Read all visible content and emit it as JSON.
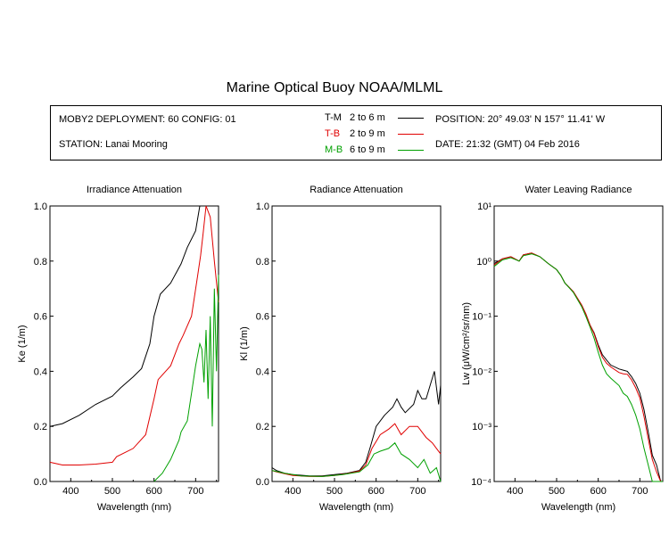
{
  "header": {
    "title": "Marine Optical Buoy NOAA/MLML",
    "deployment": "MOBY2 DEPLOYMENT: 60 CONFIG: 01",
    "station": "STATION: Lanai Mooring",
    "position": "POSITION: 20° 49.03' N   157° 11.41' W",
    "date": "DATE: 21:32 (GMT) 04 Feb 2016"
  },
  "legend": [
    {
      "code": "T-M",
      "range": "2 to 6  m",
      "color": "#000000"
    },
    {
      "code": "T-B",
      "range": "2 to 9  m",
      "color": "#e00000"
    },
    {
      "code": "M-B",
      "range": "6 to 9  m",
      "color": "#00a000"
    }
  ],
  "chart_data": [
    {
      "type": "line",
      "title": "Irradiance Attenuation",
      "xlabel": "Wavelength (nm)",
      "ylabel": "Ke  (1/m)",
      "xlim": [
        350,
        755
      ],
      "ylim": [
        0,
        1.0
      ],
      "xticks": [
        400,
        500,
        600,
        700
      ],
      "yticks": [
        0.0,
        0.2,
        0.4,
        0.6,
        0.8,
        1.0
      ],
      "ytick_labels": [
        "0.0",
        "0.2",
        "0.4",
        "0.6",
        "0.8",
        "1.0"
      ],
      "yscale": "linear",
      "series": [
        {
          "name": "T-M",
          "x": [
            350,
            380,
            420,
            460,
            500,
            520,
            550,
            570,
            590,
            600,
            615,
            640,
            665,
            680,
            700,
            710
          ],
          "y": [
            0.2,
            0.21,
            0.24,
            0.28,
            0.31,
            0.34,
            0.38,
            0.41,
            0.5,
            0.6,
            0.68,
            0.72,
            0.79,
            0.85,
            0.91,
            1.0
          ]
        },
        {
          "name": "T-B",
          "x": [
            350,
            380,
            420,
            460,
            500,
            510,
            550,
            580,
            600,
            610,
            640,
            660,
            670,
            690,
            705,
            712,
            718,
            725,
            735,
            745,
            755
          ],
          "y": [
            0.07,
            0.06,
            0.06,
            0.063,
            0.07,
            0.09,
            0.12,
            0.17,
            0.3,
            0.37,
            0.42,
            0.5,
            0.53,
            0.6,
            0.75,
            0.82,
            0.9,
            1.0,
            0.96,
            0.8,
            0.65
          ]
        },
        {
          "name": "M-B",
          "x": [
            600,
            620,
            640,
            660,
            665,
            680,
            690,
            700,
            710,
            715,
            720,
            725,
            730,
            735,
            740,
            745,
            750,
            755
          ],
          "y": [
            0.0,
            0.03,
            0.08,
            0.15,
            0.18,
            0.22,
            0.32,
            0.42,
            0.5,
            0.48,
            0.36,
            0.55,
            0.3,
            0.6,
            0.2,
            0.7,
            0.4,
            0.75
          ]
        }
      ]
    },
    {
      "type": "line",
      "title": "Radiance Attenuation",
      "xlabel": "Wavelength (nm)",
      "ylabel": "Kl  (1/m)",
      "xlim": [
        350,
        755
      ],
      "ylim": [
        0,
        1.0
      ],
      "xticks": [
        400,
        500,
        600,
        700
      ],
      "yticks": [
        0.0,
        0.2,
        0.4,
        0.6,
        0.8,
        1.0
      ],
      "ytick_labels": [
        "0.0",
        "0.2",
        "0.4",
        "0.6",
        "0.8",
        "1.0"
      ],
      "yscale": "linear",
      "series": [
        {
          "name": "T-M",
          "x": [
            350,
            360,
            380,
            400,
            440,
            470,
            500,
            530,
            560,
            575,
            585,
            600,
            620,
            640,
            650,
            660,
            670,
            690,
            700,
            710,
            720,
            730,
            740,
            750,
            755
          ],
          "y": [
            0.05,
            0.04,
            0.03,
            0.025,
            0.02,
            0.02,
            0.025,
            0.03,
            0.04,
            0.07,
            0.12,
            0.2,
            0.24,
            0.27,
            0.3,
            0.27,
            0.25,
            0.28,
            0.33,
            0.3,
            0.3,
            0.35,
            0.4,
            0.28,
            0.35
          ]
        },
        {
          "name": "T-B",
          "x": [
            350,
            360,
            380,
            400,
            440,
            470,
            500,
            530,
            560,
            575,
            590,
            610,
            630,
            645,
            660,
            680,
            700,
            720,
            735,
            745,
            755
          ],
          "y": [
            0.04,
            0.035,
            0.028,
            0.022,
            0.018,
            0.018,
            0.022,
            0.028,
            0.038,
            0.06,
            0.12,
            0.17,
            0.19,
            0.21,
            0.17,
            0.2,
            0.2,
            0.16,
            0.14,
            0.12,
            0.1
          ]
        },
        {
          "name": "M-B",
          "x": [
            350,
            380,
            420,
            470,
            520,
            560,
            580,
            595,
            610,
            630,
            645,
            660,
            680,
            700,
            715,
            730,
            745,
            755
          ],
          "y": [
            0.04,
            0.03,
            0.02,
            0.018,
            0.025,
            0.035,
            0.06,
            0.1,
            0.11,
            0.12,
            0.14,
            0.1,
            0.08,
            0.05,
            0.08,
            0.03,
            0.05,
            0.0
          ]
        }
      ]
    },
    {
      "type": "line",
      "title": "Water Leaving Radiance",
      "xlabel": "Wavelength (nm)",
      "ylabel": "Lw  (μW/cm²/sr/nm)",
      "xlim": [
        350,
        755
      ],
      "ylim": [
        0.0001,
        10
      ],
      "xticks": [
        400,
        500,
        600,
        700
      ],
      "yticks": [
        0.0001,
        0.001,
        0.01,
        0.1,
        1,
        10
      ],
      "ytick_labels": [
        "10⁻⁴",
        "10⁻³",
        "10⁻²",
        "10⁻¹",
        "10⁰",
        "10¹"
      ],
      "yscale": "log",
      "series": [
        {
          "name": "T-M",
          "x": [
            350,
            370,
            390,
            410,
            420,
            440,
            460,
            480,
            500,
            510,
            520,
            540,
            560,
            570,
            580,
            590,
            600,
            610,
            620,
            630,
            650,
            660,
            670,
            680,
            690,
            700,
            710,
            720,
            730,
            740,
            750,
            755
          ],
          "y": [
            0.9,
            1.1,
            1.2,
            1.0,
            1.3,
            1.4,
            1.2,
            0.9,
            0.7,
            0.55,
            0.4,
            0.28,
            0.16,
            0.11,
            0.07,
            0.05,
            0.03,
            0.02,
            0.016,
            0.013,
            0.011,
            0.0105,
            0.01,
            0.008,
            0.006,
            0.004,
            0.002,
            0.0008,
            0.0003,
            0.0002,
            0.0001,
            0.0001
          ]
        },
        {
          "name": "T-B",
          "x": [
            350,
            370,
            390,
            410,
            420,
            440,
            460,
            480,
            500,
            510,
            520,
            540,
            560,
            570,
            580,
            590,
            600,
            610,
            620,
            630,
            650,
            660,
            670,
            680,
            690,
            700,
            710,
            720,
            730,
            740,
            750,
            755
          ],
          "y": [
            0.85,
            1.1,
            1.2,
            1.0,
            1.3,
            1.4,
            1.2,
            0.9,
            0.7,
            0.55,
            0.4,
            0.28,
            0.16,
            0.11,
            0.07,
            0.048,
            0.028,
            0.018,
            0.014,
            0.012,
            0.0095,
            0.009,
            0.0088,
            0.007,
            0.005,
            0.0033,
            0.0015,
            0.0006,
            0.00025,
            0.00015,
            0.0001,
            0.0001
          ]
        },
        {
          "name": "M-B",
          "x": [
            350,
            370,
            390,
            410,
            420,
            440,
            460,
            480,
            500,
            510,
            520,
            540,
            560,
            570,
            580,
            590,
            600,
            610,
            620,
            630,
            650,
            660,
            670,
            680,
            690,
            700,
            710,
            720,
            730,
            740,
            750,
            755
          ],
          "y": [
            0.8,
            1.05,
            1.15,
            1.0,
            1.25,
            1.35,
            1.2,
            0.9,
            0.7,
            0.55,
            0.4,
            0.27,
            0.15,
            0.1,
            0.065,
            0.04,
            0.022,
            0.013,
            0.009,
            0.0075,
            0.0055,
            0.004,
            0.0035,
            0.0025,
            0.0016,
            0.0009,
            0.0004,
            0.0002,
            0.0001,
            0.0001,
            0.0001,
            0.0001
          ]
        }
      ]
    }
  ]
}
